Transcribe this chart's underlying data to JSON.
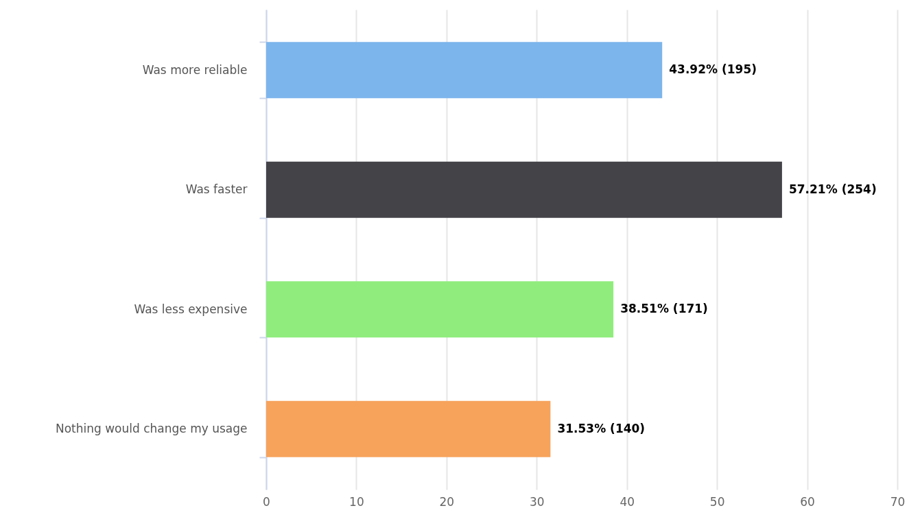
{
  "chart_data": {
    "type": "bar",
    "orientation": "horizontal",
    "categories": [
      "Was more reliable",
      "Was faster",
      "Was less expensive",
      "Nothing would change my usage"
    ],
    "values": [
      43.92,
      57.21,
      38.51,
      31.53
    ],
    "colors": [
      "#7cb5ec",
      "#434348",
      "#90ed7d",
      "#f7a35c"
    ],
    "value_labels": [
      "43.92% (195)",
      "57.21% (254)",
      "38.51% (171)",
      "31.53% (140)"
    ],
    "xlim": [
      0,
      70
    ],
    "xticks": [
      0,
      10,
      20,
      30,
      40,
      50,
      60,
      70
    ],
    "grid": "x"
  }
}
